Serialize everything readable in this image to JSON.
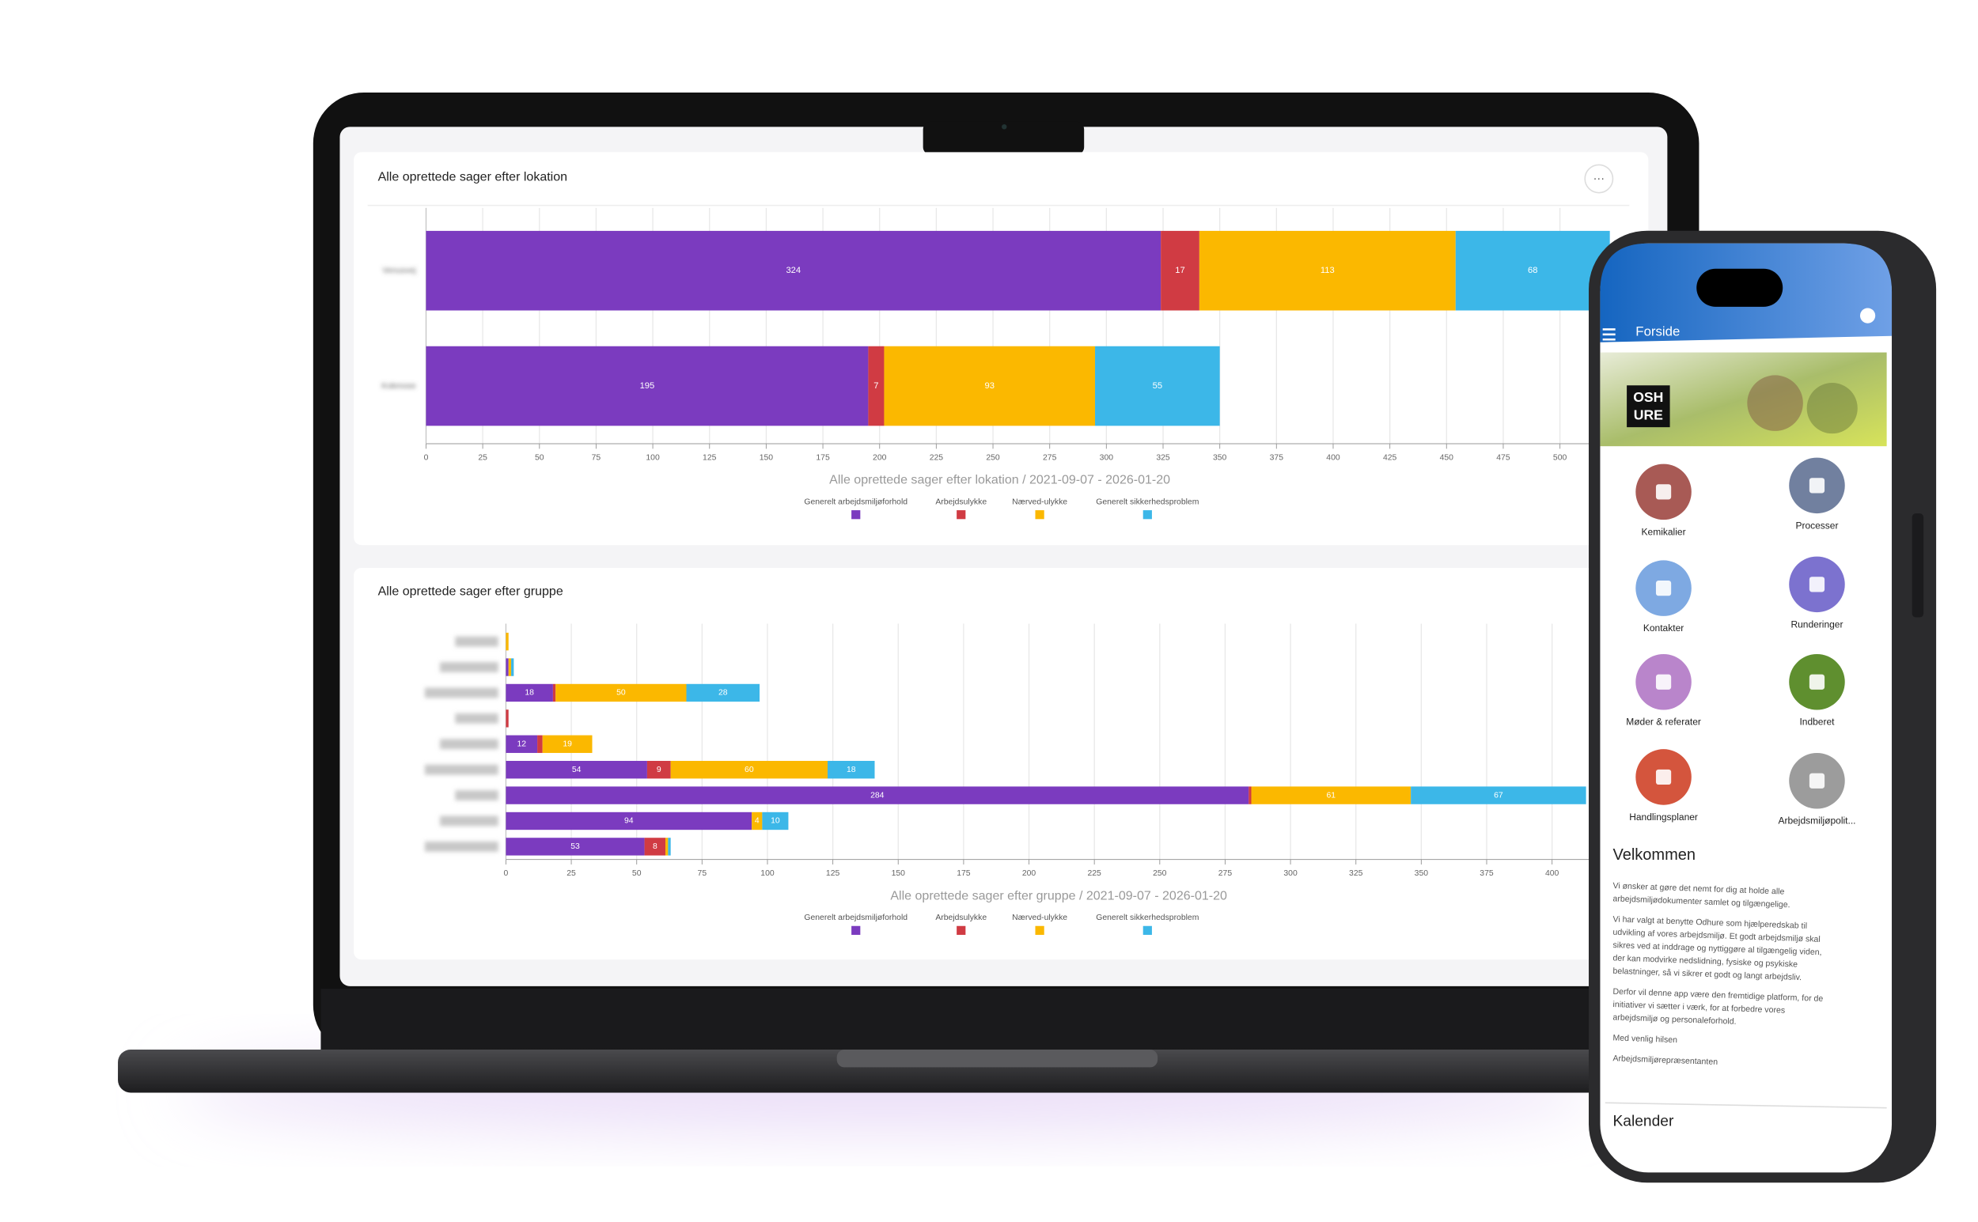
{
  "chart_data": [
    {
      "type": "bar",
      "horizontal": true,
      "stacked": true,
      "grid": true,
      "title": "Alle oprettede sager efter lokation",
      "xlabel": "Alle oprettede sager efter lokation / 2021-09-07 - 2026-01-20",
      "categories": [
        "Venusvej",
        "Kokmose"
      ],
      "series": [
        {
          "name": "Generelt arbejdsmiljøforhold",
          "color": "#7b3bbf",
          "values": [
            324,
            195
          ]
        },
        {
          "name": "Arbejdsulykke",
          "color": "#d03b43",
          "values": [
            17,
            7
          ]
        },
        {
          "name": "Nærved-ulykke",
          "color": "#fbb800",
          "values": [
            113,
            93
          ]
        },
        {
          "name": "Generelt sikkerhedsproblem",
          "color": "#3cb7e8",
          "values": [
            68,
            55
          ]
        }
      ],
      "xlim": [
        0,
        525
      ],
      "xticks": [
        0,
        25,
        50,
        75,
        100,
        125,
        150,
        175,
        200,
        225,
        250,
        275,
        300,
        325,
        350,
        375,
        400,
        425,
        450,
        475,
        500
      ]
    },
    {
      "type": "bar",
      "horizontal": true,
      "stacked": true,
      "grid": true,
      "title": "Alle oprettede sager efter gruppe",
      "xlabel": "Alle oprettede sager efter gruppe / 2021-09-07 - 2026-01-20",
      "categories": [
        null,
        null,
        null,
        null,
        null,
        null,
        null,
        null,
        null
      ],
      "series": [
        {
          "name": "Generelt arbejdsmiljøforhold",
          "color": "#7b3bbf",
          "values": [
            null,
            1,
            18,
            null,
            12,
            54,
            284,
            94,
            53
          ]
        },
        {
          "name": "Arbejdsulykke",
          "color": "#d03b43",
          "values": [
            null,
            null,
            1,
            1,
            2,
            9,
            1,
            null,
            8
          ]
        },
        {
          "name": "Nærved-ulykke",
          "color": "#fbb800",
          "values": [
            1,
            1,
            50,
            null,
            19,
            60,
            61,
            4,
            1
          ]
        },
        {
          "name": "Generelt sikkerhedsproblem",
          "color": "#3cb7e8",
          "values": [
            null,
            1,
            28,
            null,
            null,
            18,
            67,
            10,
            1
          ]
        }
      ],
      "xlim": [
        0,
        415
      ],
      "xticks": [
        0,
        25,
        50,
        75,
        100,
        125,
        150,
        175,
        200,
        225,
        250,
        275,
        300,
        325,
        350,
        375,
        400
      ]
    }
  ],
  "phone": {
    "header": {
      "title": "Forside"
    },
    "logo": [
      "OSH",
      "URE"
    ],
    "tiles": [
      "Kemikalier",
      "Processer",
      "Kontakter",
      "Runderinger",
      "Møder & referater",
      "Indberet",
      "Handlingsplaner",
      "Arbejdsmiljøpolit..."
    ],
    "welcome": {
      "title": "Velkommen",
      "paragraphs": [
        [
          "Vi ønsker at gøre det nemt for dig at holde alle",
          "arbejdsmiljødokumenter samlet og tilgængelige."
        ],
        [
          "Vi har valgt at benytte Odhure som hjælperedskab til",
          "udvikling af vores arbejdsmiljø. Et godt arbejdsmiljø skal",
          "sikres ved at inddrage og nyttiggøre al tilgængelig viden,",
          "der kan modvirke nedslidning, fysiske og psykiske",
          "belastninger, så vi sikrer et godt og langt arbejdsliv."
        ],
        [
          "Derfor vil denne app være den fremtidige platform, for de",
          "initiativer vi sætter i værk, for at forbedre vores",
          "arbejdsmiljø og personaleforhold."
        ],
        [
          "Med venlig hilsen"
        ],
        [
          "Arbejdsmiljørepræsentanten"
        ]
      ]
    },
    "calendar": {
      "title": "Kalender"
    }
  }
}
